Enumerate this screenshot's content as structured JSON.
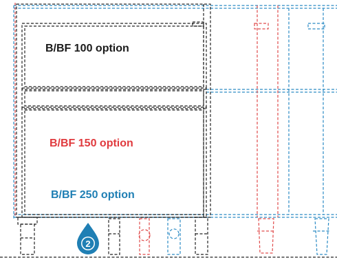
{
  "labels": {
    "option_100": "B/BF 100 option",
    "option_150": "B/BF 150 option",
    "option_250": "B/BF 250 option",
    "badge_number": "2"
  },
  "colors": {
    "option_100": "#1a1a1a",
    "option_150": "#e03a3e",
    "option_250": "#1f7fb4",
    "badge": "#1f7fb4",
    "outline_black": "#222222",
    "outline_blue": "#2a8ac4",
    "outline_red": "#e04a4a"
  },
  "icons": {
    "badge": "water-drop-number-icon"
  }
}
